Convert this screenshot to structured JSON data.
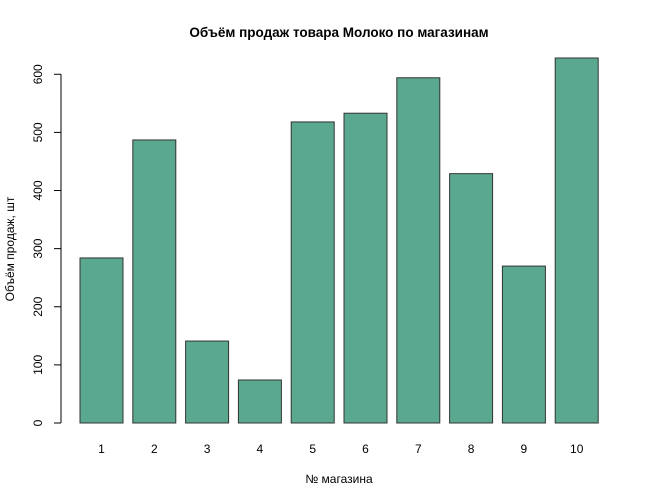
{
  "chart_data": {
    "type": "bar",
    "title": "Объём продаж товара Молоко по магазинам",
    "xlabel": "№ магазина",
    "ylabel": "Объём продаж, шт",
    "categories": [
      "1",
      "2",
      "3",
      "4",
      "5",
      "6",
      "7",
      "8",
      "9",
      "10"
    ],
    "values": [
      284,
      487,
      141,
      74,
      518,
      533,
      594,
      429,
      270,
      628
    ],
    "yticks": [
      0,
      100,
      200,
      300,
      400,
      500,
      600
    ],
    "ylim": [
      0,
      628
    ],
    "grid": false,
    "legend": "none",
    "bar_color": "#5aa88f",
    "bar_border_color": "#333333"
  }
}
